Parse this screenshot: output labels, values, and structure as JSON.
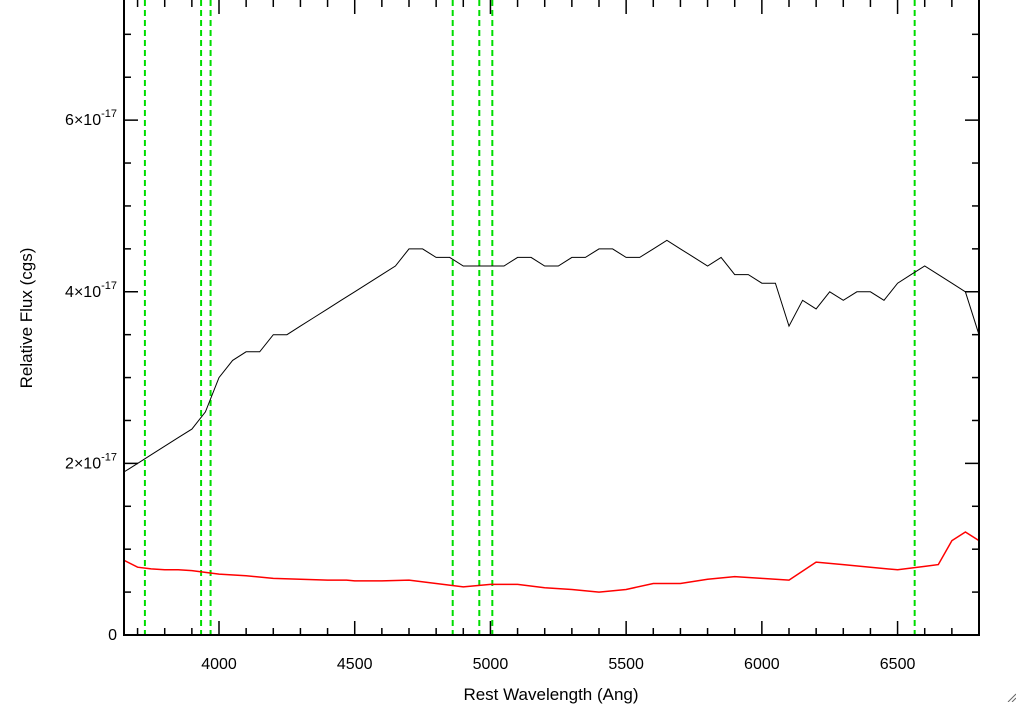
{
  "chart_data": {
    "type": "line",
    "title": "",
    "xlabel": "Rest Wavelength (Ang)",
    "ylabel": "Relative Flux (cgs)",
    "xlim": [
      3650,
      6800
    ],
    "ylim": [
      0,
      7.4e-17
    ],
    "x_ticks": [
      {
        "value": 4000,
        "label": "4000"
      },
      {
        "value": 4500,
        "label": "4500"
      },
      {
        "value": 5000,
        "label": "5000"
      },
      {
        "value": 5500,
        "label": "5500"
      },
      {
        "value": 6000,
        "label": "6000"
      },
      {
        "value": 6500,
        "label": "6500"
      }
    ],
    "y_ticks": [
      {
        "value": 0,
        "mantissa": "0",
        "exponent": ""
      },
      {
        "value": 2e-17,
        "mantissa": "2×10",
        "exponent": "-17"
      },
      {
        "value": 4e-17,
        "mantissa": "4×10",
        "exponent": "-17"
      },
      {
        "value": 6e-17,
        "mantissa": "6×10",
        "exponent": "-17"
      }
    ],
    "grid": false,
    "legend": "none",
    "line_markers": {
      "color": "#00dd00",
      "style": "dashed",
      "x": [
        3727,
        3934,
        3969,
        4861,
        4959,
        5007,
        6563
      ]
    },
    "series": [
      {
        "color": "#000000",
        "x": [
          3650,
          3700,
          3750,
          3800,
          3850,
          3900,
          3950,
          4000,
          4050,
          4100,
          4150,
          4200,
          4250,
          4300,
          4350,
          4400,
          4450,
          4500,
          4550,
          4600,
          4650,
          4700,
          4750,
          4800,
          4850,
          4900,
          4950,
          5000,
          5050,
          5100,
          5150,
          5200,
          5250,
          5300,
          5350,
          5400,
          5450,
          5500,
          5550,
          5600,
          5650,
          5700,
          5750,
          5800,
          5850,
          5900,
          5950,
          6000,
          6050,
          6100,
          6150,
          6200,
          6250,
          6300,
          6350,
          6400,
          6450,
          6500,
          6550,
          6600,
          6650,
          6700,
          6750,
          6800
        ],
        "y": [
          1.9e-17,
          2e-17,
          2.1e-17,
          2.2e-17,
          2.3e-17,
          2.4e-17,
          2.6e-17,
          3e-17,
          3.2e-17,
          3.3e-17,
          3.3e-17,
          3.5e-17,
          3.5e-17,
          3.6e-17,
          3.7e-17,
          3.8e-17,
          3.9e-17,
          4e-17,
          4.1e-17,
          4.2e-17,
          4.3e-17,
          4.5e-17,
          4.5e-17,
          4.4e-17,
          4.4e-17,
          4.3e-17,
          4.3e-17,
          4.3e-17,
          4.3e-17,
          4.4e-17,
          4.4e-17,
          4.3e-17,
          4.3e-17,
          4.4e-17,
          4.4e-17,
          4.5e-17,
          4.5e-17,
          4.4e-17,
          4.4e-17,
          4.5e-17,
          4.6e-17,
          4.5e-17,
          4.4e-17,
          4.3e-17,
          4.4e-17,
          4.2e-17,
          4.2e-17,
          4.1e-17,
          4.1e-17,
          3.6e-17,
          3.9e-17,
          3.8e-17,
          4e-17,
          3.9e-17,
          4e-17,
          4e-17,
          3.9e-17,
          4.1e-17,
          4.2e-17,
          4.3e-17,
          4.2e-17,
          4.1e-17,
          4e-17,
          3.5e-17
        ]
      },
      {
        "color": "#ff0000",
        "x": [
          3650,
          3700,
          3750,
          3800,
          3850,
          3900,
          3950,
          4000,
          4100,
          4200,
          4300,
          4400,
          4470,
          4500,
          4600,
          4700,
          4800,
          4900,
          5000,
          5100,
          5200,
          5300,
          5400,
          5500,
          5600,
          5700,
          5800,
          5900,
          6000,
          6100,
          6200,
          6300,
          6400,
          6500,
          6600,
          6650,
          6700,
          6750,
          6800
        ],
        "y": [
          8.7e-18,
          7.9e-18,
          7.7e-18,
          7.6e-18,
          7.6e-18,
          7.5e-18,
          7.3e-18,
          7.1e-18,
          6.9e-18,
          6.6e-18,
          6.5e-18,
          6.4e-18,
          6.4e-18,
          6.3e-18,
          6.3e-18,
          6.4e-18,
          6e-18,
          5.6e-18,
          5.9e-18,
          5.9e-18,
          5.5e-18,
          5.3e-18,
          5e-18,
          5.3e-18,
          6e-18,
          6e-18,
          6.5e-18,
          6.8e-18,
          6.6e-18,
          6.4e-18,
          8.5e-18,
          8.2e-18,
          7.9e-18,
          7.6e-18,
          8e-18,
          8.2e-18,
          1.1e-17,
          1.2e-17,
          1.1e-17
        ]
      }
    ]
  }
}
